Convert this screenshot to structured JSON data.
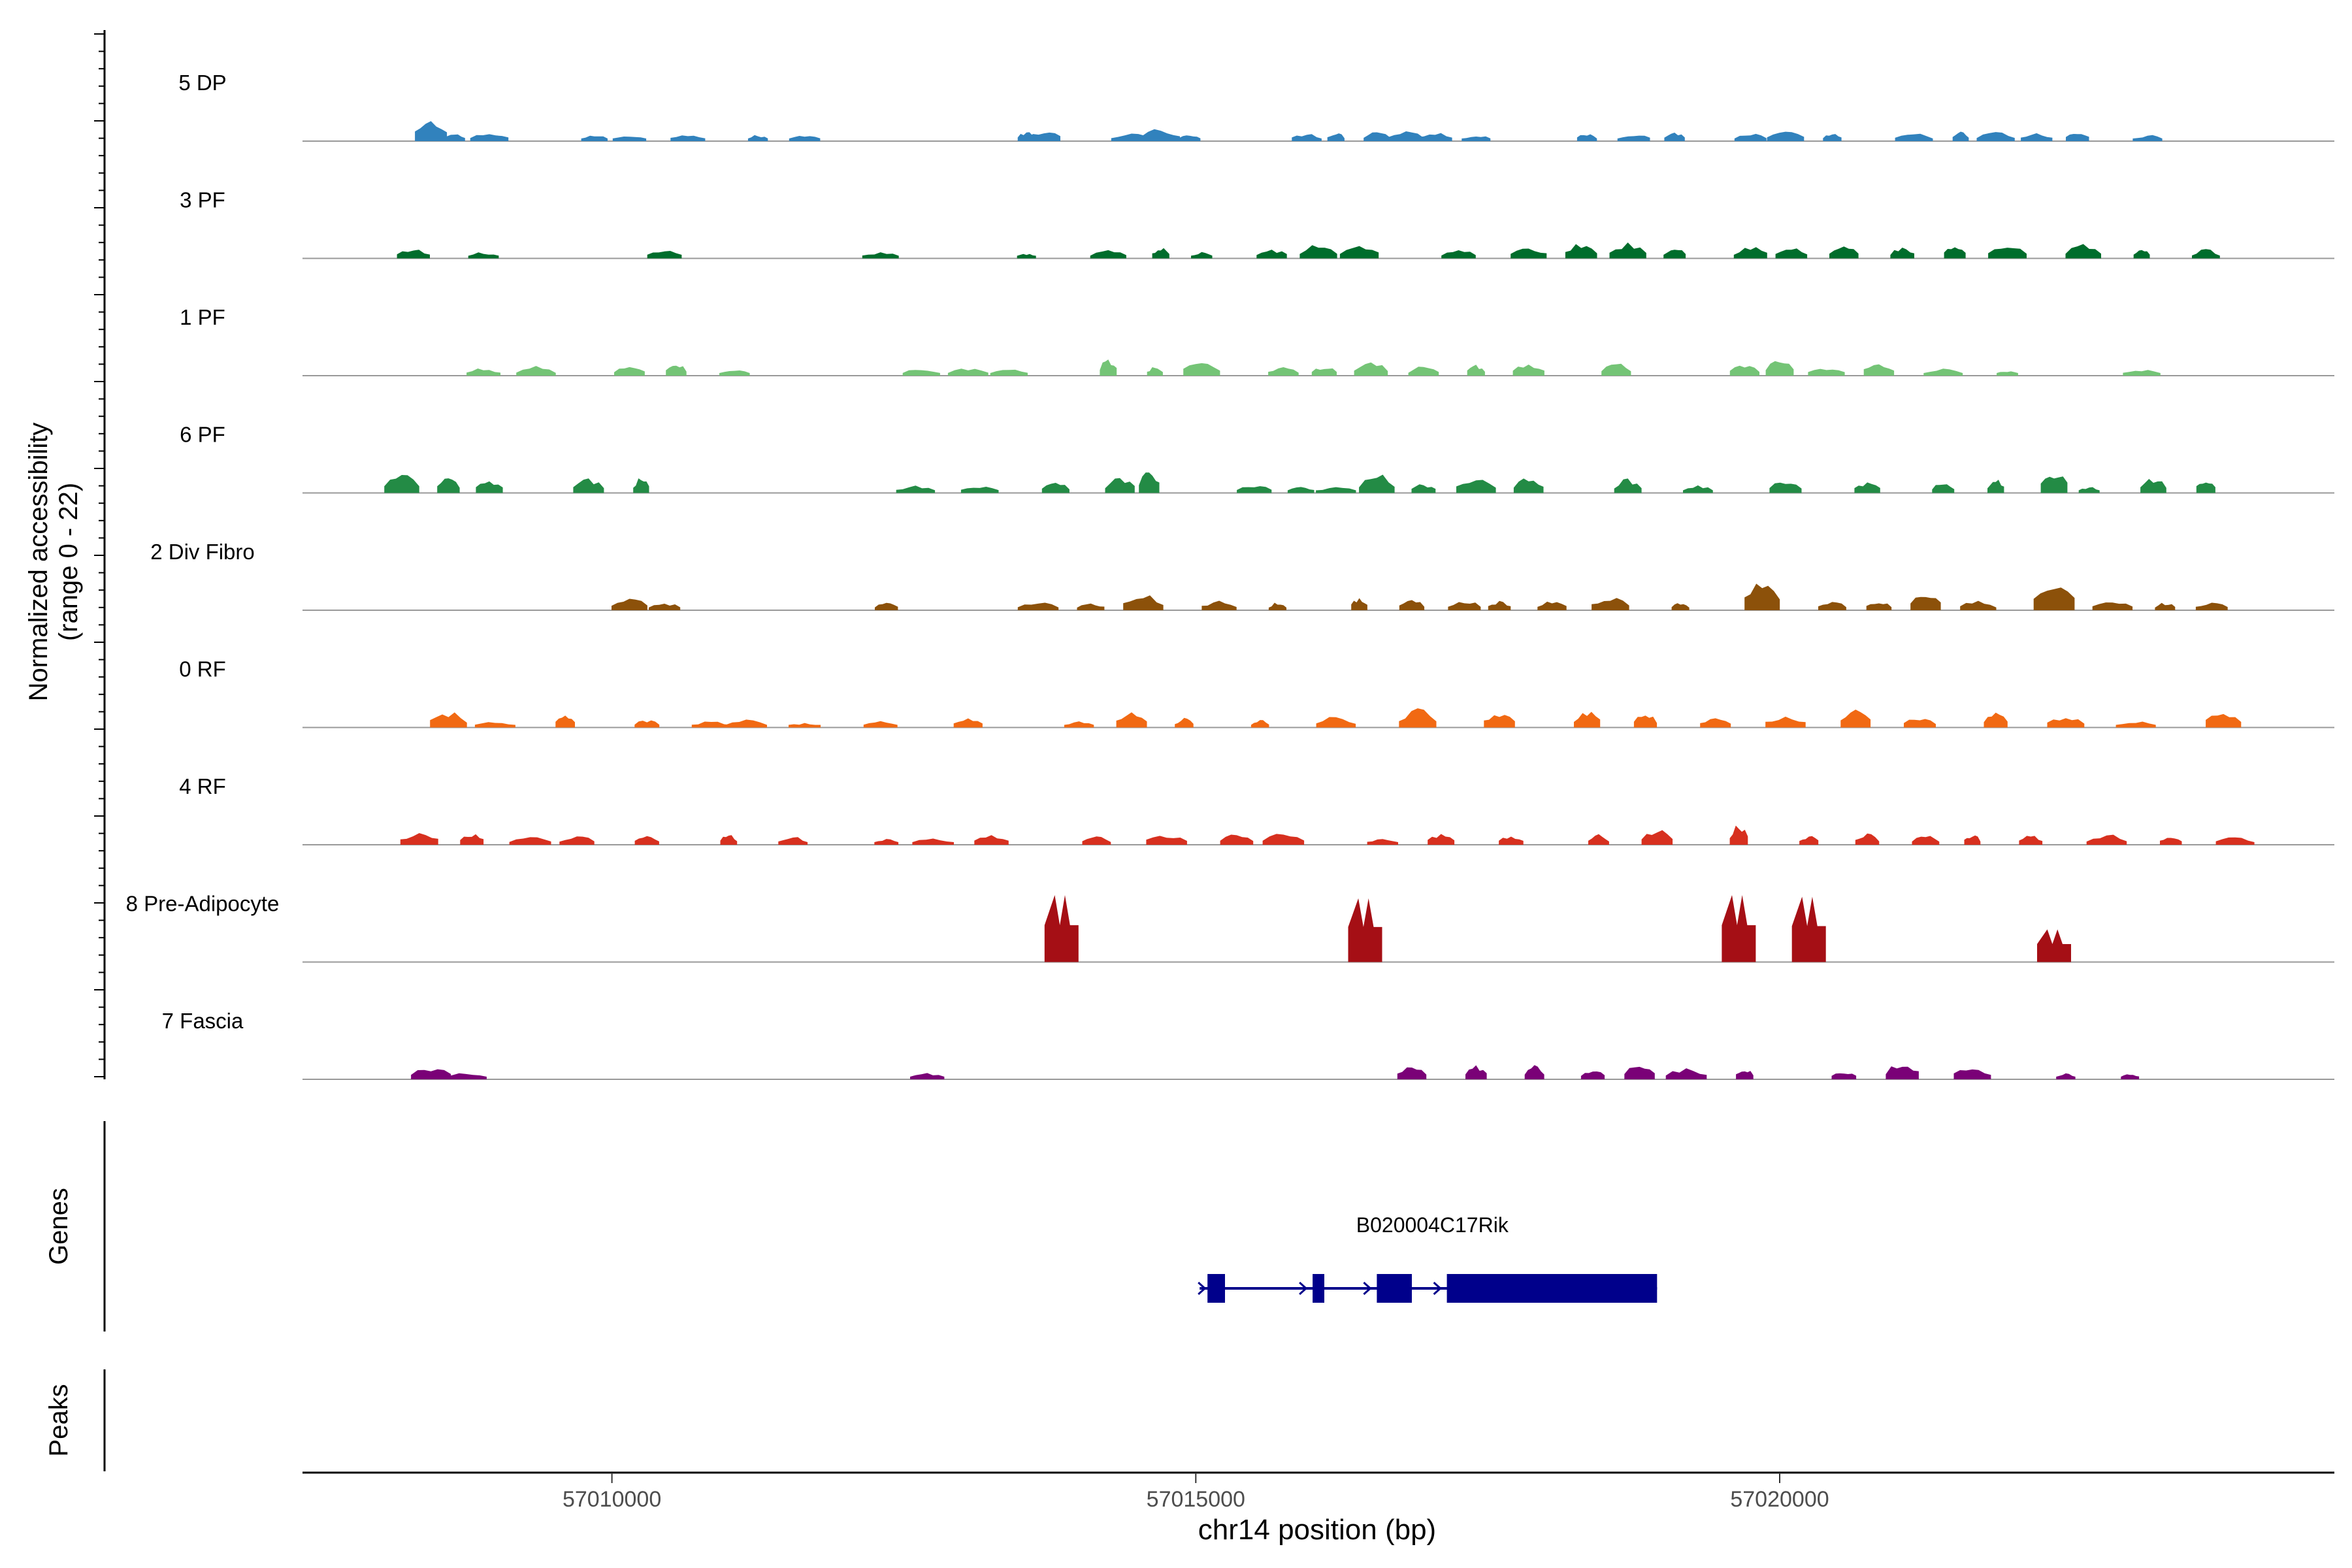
{
  "chart_data": {
    "type": "area",
    "y_axis_label_line1": "Normalized accessibility",
    "y_axis_label_line2": "(range 0 - 22)",
    "ylim": [
      0,
      22
    ],
    "x_axis_title": "chr14 position (bp)",
    "xlim": [
      57007350,
      57024750
    ],
    "x_ticks": [
      57010000,
      57015000,
      57020000
    ],
    "x_tick_labels": [
      "57010000",
      "57015000",
      "57020000"
    ],
    "genes_label": "Genes",
    "peaks_label": "Peaks",
    "tracks": [
      {
        "name": "5 DP",
        "color": "#3182BD",
        "peaks": [
          [
            57008450,
            1.3
          ],
          [
            57008650,
            0.5
          ],
          [
            57008950,
            0.5
          ],
          [
            57009850,
            0.4
          ],
          [
            57010150,
            0.4
          ],
          [
            57010650,
            0.5
          ],
          [
            57011250,
            0.4
          ],
          [
            57011650,
            0.4
          ],
          [
            57013550,
            0.6
          ],
          [
            57013700,
            0.7
          ],
          [
            57014450,
            0.5
          ],
          [
            57014700,
            0.8
          ],
          [
            57014950,
            0.5
          ],
          [
            57015950,
            0.5
          ],
          [
            57016200,
            0.6
          ],
          [
            57016550,
            0.7
          ],
          [
            57016800,
            0.7
          ],
          [
            57017050,
            0.6
          ],
          [
            57017400,
            0.4
          ],
          [
            57018350,
            0.5
          ],
          [
            57018750,
            0.5
          ],
          [
            57019100,
            0.6
          ],
          [
            57019750,
            0.5
          ],
          [
            57020050,
            0.6
          ],
          [
            57020450,
            0.5
          ],
          [
            57021150,
            0.5
          ],
          [
            57021550,
            0.6
          ],
          [
            57021850,
            0.6
          ],
          [
            57022200,
            0.5
          ],
          [
            57022550,
            0.6
          ],
          [
            57023150,
            0.4
          ]
        ]
      },
      {
        "name": "3 PF",
        "color": "#006D2C",
        "peaks": [
          [
            57008300,
            0.6
          ],
          [
            57008900,
            0.4
          ],
          [
            57010450,
            0.5
          ],
          [
            57012300,
            0.4
          ],
          [
            57013550,
            0.3
          ],
          [
            57014250,
            0.6
          ],
          [
            57014700,
            0.7
          ],
          [
            57015050,
            0.4
          ],
          [
            57015650,
            0.6
          ],
          [
            57016050,
            0.9
          ],
          [
            57016400,
            0.9
          ],
          [
            57017250,
            0.6
          ],
          [
            57017850,
            0.7
          ],
          [
            57018300,
            1.0
          ],
          [
            57018700,
            1.0
          ],
          [
            57019100,
            0.8
          ],
          [
            57019750,
            0.8
          ],
          [
            57020100,
            0.7
          ],
          [
            57020550,
            0.8
          ],
          [
            57021050,
            0.7
          ],
          [
            57021500,
            0.8
          ],
          [
            57021950,
            0.8
          ],
          [
            57022600,
            0.9
          ],
          [
            57023100,
            0.6
          ],
          [
            57023650,
            0.6
          ]
        ]
      },
      {
        "name": "1 PF",
        "color": "#74C476",
        "peaks": [
          [
            57008900,
            0.5
          ],
          [
            57009350,
            0.6
          ],
          [
            57010150,
            0.6
          ],
          [
            57010550,
            0.8
          ],
          [
            57011050,
            0.4
          ],
          [
            57012650,
            0.5
          ],
          [
            57013050,
            0.5
          ],
          [
            57013400,
            0.4
          ],
          [
            57014250,
            1.1
          ],
          [
            57014650,
            0.6
          ],
          [
            57015050,
            1.0
          ],
          [
            57015750,
            0.6
          ],
          [
            57016100,
            0.6
          ],
          [
            57016500,
            0.9
          ],
          [
            57016950,
            0.6
          ],
          [
            57017400,
            0.7
          ],
          [
            57017850,
            0.8
          ],
          [
            57018600,
            0.8
          ],
          [
            57019700,
            0.7
          ],
          [
            57020000,
            1.0
          ],
          [
            57020400,
            0.5
          ],
          [
            57020850,
            0.9
          ],
          [
            57021400,
            0.5
          ],
          [
            57021950,
            0.3
          ],
          [
            57023100,
            0.4
          ]
        ]
      },
      {
        "name": "6 PF",
        "color": "#238B45",
        "peaks": [
          [
            57008200,
            1.2
          ],
          [
            57008600,
            1.0
          ],
          [
            57008950,
            0.8
          ],
          [
            57009800,
            0.9
          ],
          [
            57010250,
            1.0
          ],
          [
            57012600,
            0.5
          ],
          [
            57013150,
            0.5
          ],
          [
            57013800,
            0.8
          ],
          [
            57014350,
            1.0
          ],
          [
            57014600,
            1.5
          ],
          [
            57015500,
            0.5
          ],
          [
            57015900,
            0.4
          ],
          [
            57016200,
            0.4
          ],
          [
            57016550,
            1.2
          ],
          [
            57016950,
            0.6
          ],
          [
            57017400,
            0.9
          ],
          [
            57017850,
            1.1
          ],
          [
            57018700,
            0.9
          ],
          [
            57019300,
            0.5
          ],
          [
            57020050,
            0.8
          ],
          [
            57020750,
            0.7
          ],
          [
            57021400,
            0.7
          ],
          [
            57021850,
            0.9
          ],
          [
            57022350,
            1.4
          ],
          [
            57022650,
            0.4
          ],
          [
            57023200,
            1.0
          ],
          [
            57023650,
            1.0
          ]
        ]
      },
      {
        "name": "2 Div Fibro",
        "color": "#8C510A",
        "peaks": [
          [
            57010150,
            0.9
          ],
          [
            57010450,
            0.5
          ],
          [
            57012350,
            0.5
          ],
          [
            57013650,
            0.5
          ],
          [
            57014100,
            0.5
          ],
          [
            57014550,
            1.0
          ],
          [
            57015200,
            0.6
          ],
          [
            57015700,
            0.5
          ],
          [
            57016400,
            0.8
          ],
          [
            57016850,
            0.7
          ],
          [
            57017300,
            0.7
          ],
          [
            57017600,
            0.6
          ],
          [
            57018050,
            0.6
          ],
          [
            57018550,
            0.9
          ],
          [
            57019150,
            0.5
          ],
          [
            57019850,
            1.8
          ],
          [
            57020450,
            0.6
          ],
          [
            57020850,
            0.6
          ],
          [
            57021250,
            1.1
          ],
          [
            57021700,
            0.6
          ],
          [
            57022350,
            1.7
          ],
          [
            57022850,
            0.7
          ],
          [
            57023300,
            0.5
          ],
          [
            57023700,
            0.5
          ]
        ]
      },
      {
        "name": "0 RF",
        "color": "#F16913",
        "peaks": [
          [
            57008600,
            1.0
          ],
          [
            57009000,
            0.4
          ],
          [
            57009600,
            0.8
          ],
          [
            57010300,
            0.5
          ],
          [
            57010850,
            0.4
          ],
          [
            57011150,
            0.5
          ],
          [
            57011650,
            0.3
          ],
          [
            57012300,
            0.4
          ],
          [
            57013050,
            0.6
          ],
          [
            57014000,
            0.4
          ],
          [
            57014450,
            1.0
          ],
          [
            57014900,
            0.6
          ],
          [
            57015550,
            0.5
          ],
          [
            57016200,
            0.7
          ],
          [
            57016900,
            1.2
          ],
          [
            57017600,
            1.0
          ],
          [
            57018350,
            1.1
          ],
          [
            57018850,
            0.9
          ],
          [
            57019450,
            0.6
          ],
          [
            57020050,
            0.8
          ],
          [
            57020650,
            1.1
          ],
          [
            57021200,
            0.7
          ],
          [
            57021850,
            1.0
          ],
          [
            57022450,
            0.7
          ],
          [
            57023050,
            0.4
          ],
          [
            57023800,
            1.1
          ]
        ]
      },
      {
        "name": "4 RF",
        "color": "#D7301F",
        "peaks": [
          [
            57008350,
            0.8
          ],
          [
            57008800,
            0.8
          ],
          [
            57009300,
            0.5
          ],
          [
            57009700,
            0.6
          ],
          [
            57010300,
            0.6
          ],
          [
            57011000,
            0.7
          ],
          [
            57011550,
            0.5
          ],
          [
            57012350,
            0.4
          ],
          [
            57012750,
            0.4
          ],
          [
            57013250,
            0.6
          ],
          [
            57014150,
            0.6
          ],
          [
            57014750,
            0.7
          ],
          [
            57015350,
            0.8
          ],
          [
            57015750,
            0.8
          ],
          [
            57016600,
            0.4
          ],
          [
            57017100,
            0.7
          ],
          [
            57017700,
            0.6
          ],
          [
            57018450,
            0.7
          ],
          [
            57018950,
            1.0
          ],
          [
            57019650,
            1.4
          ],
          [
            57020250,
            0.6
          ],
          [
            57020750,
            0.7
          ],
          [
            57021250,
            0.6
          ],
          [
            57021650,
            0.7
          ],
          [
            57022150,
            0.6
          ],
          [
            57022800,
            0.7
          ],
          [
            57023350,
            0.6
          ],
          [
            57023900,
            0.5
          ]
        ]
      },
      {
        "name": "8 Pre-Adipocyte",
        "color": "#A50F15",
        "peaks": [
          [
            57013850,
            4.1
          ],
          [
            57016450,
            3.9
          ],
          [
            57019650,
            4.1
          ],
          [
            57020250,
            4.0
          ],
          [
            57022350,
            2.0
          ]
        ]
      },
      {
        "name": "7 Fascia",
        "color": "#7A0177",
        "peaks": [
          [
            57008450,
            0.8
          ],
          [
            57008750,
            0.4
          ],
          [
            57012700,
            0.4
          ],
          [
            57016850,
            0.8
          ],
          [
            57017400,
            0.9
          ],
          [
            57017900,
            1.0
          ],
          [
            57018400,
            0.6
          ],
          [
            57018800,
            1.1
          ],
          [
            57019200,
            0.7
          ],
          [
            57019700,
            0.7
          ],
          [
            57020550,
            0.5
          ],
          [
            57021050,
            1.1
          ],
          [
            57021650,
            0.8
          ],
          [
            57022450,
            0.4
          ],
          [
            57023000,
            0.4
          ]
        ]
      }
    ],
    "gene": {
      "name": "B020004C17Rik",
      "start": 57015100,
      "end": 57018950,
      "strand": "+",
      "exons": [
        [
          57015100,
          57015250
        ],
        [
          57016000,
          57016100
        ],
        [
          57016550,
          57016850
        ],
        [
          57017150,
          57018950
        ]
      ]
    }
  }
}
